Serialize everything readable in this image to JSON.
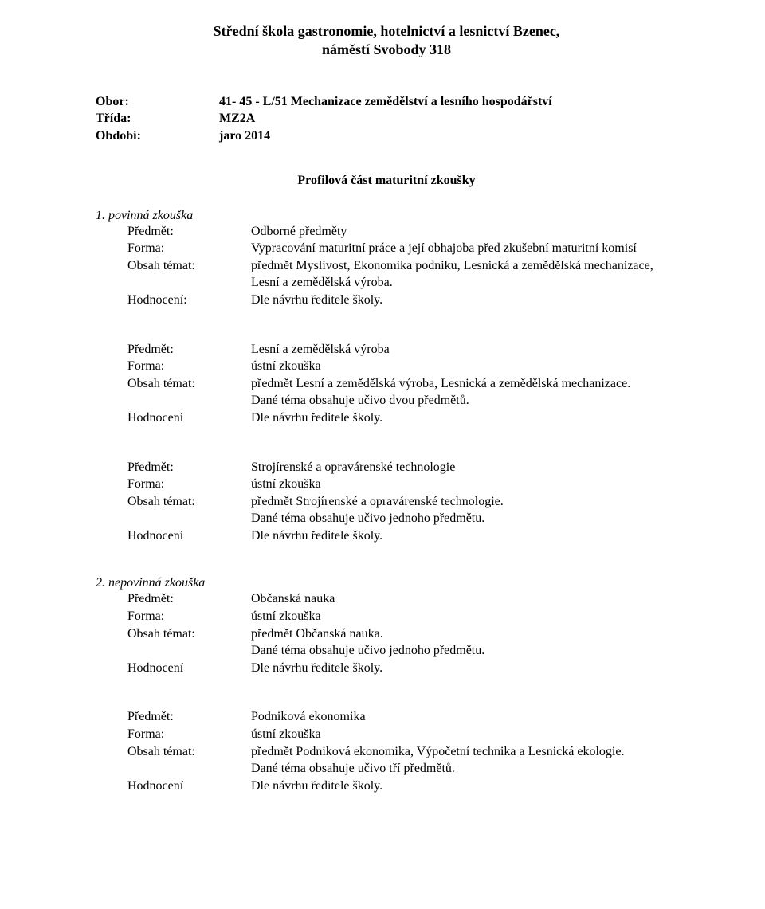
{
  "header": {
    "line1": "Střední škola gastronomie, hotelnictví a lesnictví Bzenec,",
    "line2": "náměstí Svobody 318"
  },
  "meta": {
    "obor_label": "Obor:",
    "obor_value": "41- 45 - L/51 Mechanizace zemědělství a lesního hospodářství",
    "trida_label": "Třída:",
    "trida_value": "MZ2A",
    "obdobi_label": "Období:",
    "obdobi_value": "jaro 2014"
  },
  "profil_title": "Profilová část maturitní zkoušky",
  "labels": {
    "predmet": "Předmět:",
    "forma": "Forma:",
    "obsah": "Obsah témat:",
    "hodnoceni_colon": "Hodnocení:",
    "hodnoceni": "Hodnocení"
  },
  "common": {
    "ustni": "ústní zkouška",
    "dle": "Dle návrhu ředitele školy."
  },
  "exam1_heading": "1. povinná zkouška",
  "exam2_heading": "2. nepovinná zkouška",
  "s1": {
    "predmet": "Odborné předměty",
    "forma": "Vypracování maturitní práce a její obhajoba před zkušební maturitní komisí",
    "obsah1": "předmět Myslivost, Ekonomika podniku, Lesnická a zemědělská mechanizace,",
    "obsah2": "Lesní a zemědělská výroba."
  },
  "s2": {
    "predmet": "Lesní a zemědělská výroba",
    "obsah1": "předmět Lesní a zemědělská výroba, Lesnická a zemědělská mechanizace.",
    "obsah2": "Dané téma obsahuje učivo dvou předmětů."
  },
  "s3": {
    "predmet": "Strojírenské a opravárenské technologie",
    "obsah1": "předmět Strojírenské a opravárenské technologie.",
    "obsah2": "Dané téma obsahuje učivo jednoho předmětu."
  },
  "s4": {
    "predmet": "Občanská nauka",
    "obsah1": "předmět Občanská nauka.",
    "obsah2": "Dané téma obsahuje učivo jednoho předmětu."
  },
  "s5": {
    "predmet": "Podniková ekonomika",
    "obsah1": "předmět Podniková ekonomika, Výpočetní technika a Lesnická ekologie.",
    "obsah2": "Dané téma obsahuje učivo tří předmětů."
  }
}
